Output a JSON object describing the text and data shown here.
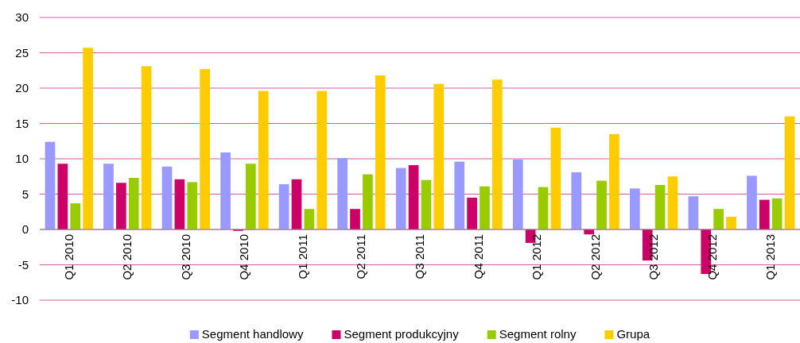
{
  "chart_data": {
    "type": "bar",
    "categories": [
      "Q1 2010",
      "Q2 2010",
      "Q3 2010",
      "Q4 2010",
      "Q1 2011",
      "Q2 2011",
      "Q3 2011",
      "Q4 2011",
      "Q1 2012",
      "Q2 2012",
      "Q3 2012",
      "Q4 2012",
      "Q1 2013"
    ],
    "series": [
      {
        "name": "Segment handlowy",
        "color": "#9999ff",
        "values": [
          12.4,
          9.3,
          8.9,
          10.9,
          6.4,
          10.1,
          8.7,
          9.6,
          9.9,
          8.1,
          5.8,
          4.7,
          7.6
        ]
      },
      {
        "name": "Segment produkcyjny",
        "color": "#cc0066",
        "values": [
          9.3,
          6.6,
          7.1,
          -0.2,
          7.1,
          2.9,
          9.1,
          4.5,
          -1.9,
          -0.7,
          -4.4,
          -6.3,
          4.2
        ]
      },
      {
        "name": "Segment rolny",
        "color": "#99cc00",
        "values": [
          3.7,
          7.3,
          6.7,
          9.3,
          2.9,
          7.8,
          7.0,
          6.1,
          6.0,
          6.9,
          6.3,
          2.9,
          4.4
        ]
      },
      {
        "name": "Grupa",
        "color": "#ffcc00",
        "values": [
          25.7,
          23.1,
          22.7,
          19.6,
          19.6,
          21.8,
          20.6,
          21.2,
          14.4,
          13.5,
          7.5,
          1.8,
          16.0
        ]
      }
    ],
    "ylim": [
      -10,
      30
    ],
    "yticks": [
      -10,
      -5,
      0,
      5,
      10,
      15,
      20,
      25,
      30
    ],
    "grid": "y",
    "legend": "bottom"
  }
}
